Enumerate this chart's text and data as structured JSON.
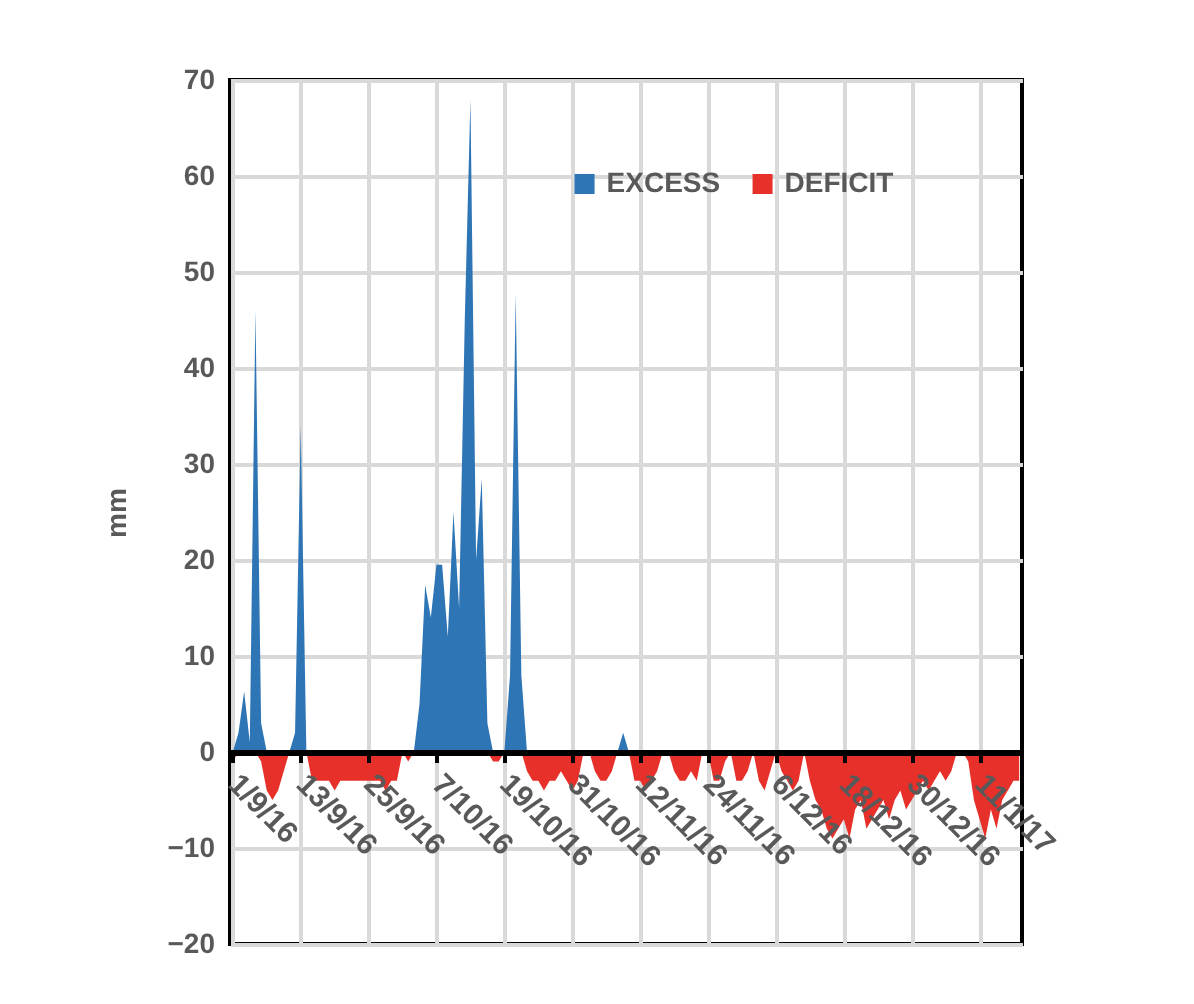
{
  "chart_data": {
    "type": "area",
    "ylabel": "mm",
    "ylim": [
      -20,
      70
    ],
    "yticks": [
      -20,
      -10,
      0,
      10,
      20,
      30,
      40,
      50,
      60,
      70
    ],
    "grid": true,
    "legend": "top right",
    "categories": [
      "1/9/16",
      null,
      null,
      null,
      null,
      null,
      null,
      null,
      null,
      null,
      null,
      null,
      "13/9/16",
      null,
      null,
      null,
      null,
      null,
      null,
      null,
      null,
      null,
      null,
      null,
      "25/9/16",
      null,
      null,
      null,
      null,
      null,
      null,
      null,
      null,
      null,
      null,
      null,
      "7/10/16",
      null,
      null,
      null,
      null,
      null,
      null,
      null,
      null,
      null,
      null,
      null,
      "19/10/16",
      null,
      null,
      null,
      null,
      null,
      null,
      null,
      null,
      null,
      null,
      null,
      "31/10/16",
      null,
      null,
      null,
      null,
      null,
      null,
      null,
      null,
      null,
      null,
      null,
      "12/11/16",
      null,
      null,
      null,
      null,
      null,
      null,
      null,
      null,
      null,
      null,
      null,
      "24/11/16",
      null,
      null,
      null,
      null,
      null,
      null,
      null,
      null,
      null,
      null,
      null,
      "6/12/16",
      null,
      null,
      null,
      null,
      null,
      null,
      null,
      null,
      null,
      null,
      null,
      "18/12/16",
      null,
      null,
      null,
      null,
      null,
      null,
      null,
      null,
      null,
      null,
      null,
      "30/12/16",
      null,
      null,
      null,
      null,
      null,
      null,
      null,
      null,
      null,
      null,
      null,
      "11/1/17",
      null,
      null,
      null,
      null,
      null,
      null,
      null
    ],
    "series": [
      {
        "name": "EXCESS",
        "color": "#2e75b6",
        "values": [
          0,
          2,
          6.3,
          1,
          46,
          3,
          0,
          0,
          0,
          0,
          0,
          2,
          34,
          0,
          0,
          0,
          0,
          0,
          0,
          0,
          0,
          0,
          0,
          0,
          0,
          0,
          0,
          0,
          0,
          0,
          0,
          0,
          0,
          5,
          17.4,
          14,
          19.5,
          19.5,
          12,
          25,
          15,
          45,
          68,
          20,
          28.5,
          3,
          0,
          0,
          0,
          8,
          47.7,
          8,
          0,
          0,
          0,
          0,
          0,
          0,
          0,
          0,
          0,
          0,
          0,
          0,
          0,
          0,
          0,
          0,
          0,
          2,
          0,
          0,
          0,
          0,
          0,
          0,
          0,
          0,
          0,
          0,
          0,
          0,
          0,
          0,
          0,
          0,
          0,
          0,
          0,
          0,
          0,
          0,
          0,
          0,
          0,
          0,
          0,
          0,
          0,
          0,
          0,
          0,
          0,
          0,
          0,
          0,
          0,
          0,
          0,
          0,
          0,
          0,
          0,
          0,
          0,
          0,
          0,
          0,
          0,
          0,
          0,
          0,
          0,
          0,
          0,
          0,
          0,
          0,
          0,
          0,
          0,
          0,
          0,
          0,
          0,
          0,
          0,
          0,
          0,
          0
        ]
      },
      {
        "name": "DEFICIT",
        "color": "#e8302a",
        "values": [
          -1,
          0,
          0,
          0,
          0,
          -1,
          -4,
          -5,
          -4,
          -2,
          0,
          0,
          0,
          0,
          -3,
          -3,
          -3,
          -3,
          -4,
          -3,
          -3,
          -3,
          -3,
          -3,
          -3,
          -3,
          -3,
          -4,
          -3,
          -3,
          0,
          -1,
          0,
          0,
          0,
          0,
          0,
          0,
          0,
          0,
          0,
          0,
          0,
          0,
          0,
          0,
          -1,
          -1,
          0,
          0,
          0,
          0,
          -2,
          -3,
          -3,
          -4,
          -3,
          -3,
          -2,
          -3,
          -4,
          -3,
          0,
          0,
          -2,
          -3,
          -3,
          -2,
          0,
          0,
          0,
          -3,
          -3,
          -4,
          -3,
          -2,
          0,
          0,
          -2,
          -3,
          -3,
          -2,
          -3,
          0,
          0,
          -3,
          -3,
          -1,
          0,
          -3,
          -3,
          -2,
          0,
          -3,
          -4,
          -2,
          0,
          -2,
          -3,
          -4,
          -3,
          0,
          -3,
          -5,
          -6,
          -8,
          -9,
          -8,
          -7,
          -9,
          -6,
          -5,
          -8,
          -7,
          -6,
          -5,
          -7,
          -5,
          -4,
          -6,
          -5,
          -4,
          -3,
          -4,
          -3,
          -2,
          -3,
          -2,
          0,
          0,
          -1,
          -5,
          -7,
          -9,
          -6,
          -8,
          -5,
          -4,
          -3,
          -3
        ]
      }
    ]
  }
}
